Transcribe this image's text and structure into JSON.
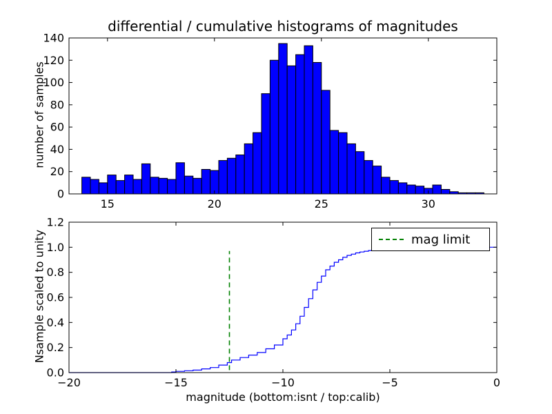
{
  "figure": {
    "background": "#ffffff"
  },
  "chart_data": [
    {
      "type": "bar",
      "title": "differential / cumulative histograms of magnitudes",
      "xlabel": "",
      "ylabel": "number of samples",
      "bar_color": "#0000ff",
      "bar_edge_color": "#000000",
      "xlim": [
        13.2,
        33.2
      ],
      "ylim": [
        0,
        140
      ],
      "xticks": [
        15,
        20,
        25,
        30
      ],
      "yticks": [
        0,
        20,
        40,
        60,
        80,
        100,
        120,
        140
      ],
      "grid": false,
      "bin_start": 13.8,
      "bin_width": 0.4,
      "counts": [
        15,
        13,
        10,
        17,
        12,
        17,
        13,
        27,
        15,
        14,
        13,
        28,
        16,
        14,
        22,
        21,
        30,
        32,
        35,
        45,
        55,
        90,
        120,
        135,
        115,
        125,
        133,
        118,
        93,
        57,
        55,
        45,
        38,
        30,
        25,
        15,
        12,
        10,
        8,
        7,
        5,
        8,
        4,
        2,
        1,
        1,
        1
      ]
    },
    {
      "type": "line",
      "title": "",
      "xlabel": "magnitude (bottom:isnt / top:calib)",
      "ylabel": "Nsample scaled to unity",
      "line_color": "#0000ff",
      "step": true,
      "xlim": [
        -20,
        0
      ],
      "ylim": [
        0,
        1.2
      ],
      "xticks": [
        -20,
        -15,
        -10,
        -5,
        0
      ],
      "yticks": [
        0.0,
        0.2,
        0.4,
        0.6,
        0.8,
        1.0,
        1.2
      ],
      "grid": false,
      "points": [
        [
          -20,
          0
        ],
        [
          -15.4,
          0
        ],
        [
          -15.2,
          0.005
        ],
        [
          -15,
          0.01
        ],
        [
          -14.6,
          0.015
        ],
        [
          -14.2,
          0.02
        ],
        [
          -13.8,
          0.03
        ],
        [
          -13.4,
          0.04
        ],
        [
          -13,
          0.06
        ],
        [
          -12.6,
          0.08
        ],
        [
          -12.4,
          0.1
        ],
        [
          -12,
          0.12
        ],
        [
          -11.6,
          0.14
        ],
        [
          -11.2,
          0.16
        ],
        [
          -10.8,
          0.19
        ],
        [
          -10.4,
          0.22
        ],
        [
          -10,
          0.27
        ],
        [
          -9.8,
          0.3
        ],
        [
          -9.6,
          0.34
        ],
        [
          -9.4,
          0.39
        ],
        [
          -9.2,
          0.45
        ],
        [
          -9,
          0.52
        ],
        [
          -8.8,
          0.59
        ],
        [
          -8.6,
          0.66
        ],
        [
          -8.4,
          0.72
        ],
        [
          -8.2,
          0.77
        ],
        [
          -8,
          0.82
        ],
        [
          -7.8,
          0.85
        ],
        [
          -7.6,
          0.88
        ],
        [
          -7.4,
          0.9
        ],
        [
          -7.2,
          0.92
        ],
        [
          -7,
          0.935
        ],
        [
          -6.8,
          0.945
        ],
        [
          -6.6,
          0.955
        ],
        [
          -6.4,
          0.962
        ],
        [
          -6.2,
          0.968
        ],
        [
          -6,
          0.974
        ],
        [
          -5.6,
          0.982
        ],
        [
          -5.2,
          0.988
        ],
        [
          -4.8,
          0.993
        ],
        [
          -4.4,
          0.996
        ],
        [
          -4,
          0.998
        ],
        [
          -3.5,
          0.999
        ],
        [
          -3,
          1.0
        ],
        [
          0,
          1.0
        ]
      ],
      "mag_limit_line": {
        "x": -12.5,
        "color": "#008000",
        "style": "dashed",
        "y_start": 0.02,
        "y_end": 0.97
      },
      "legend": {
        "label": "mag limit",
        "position": "upper right"
      }
    }
  ]
}
